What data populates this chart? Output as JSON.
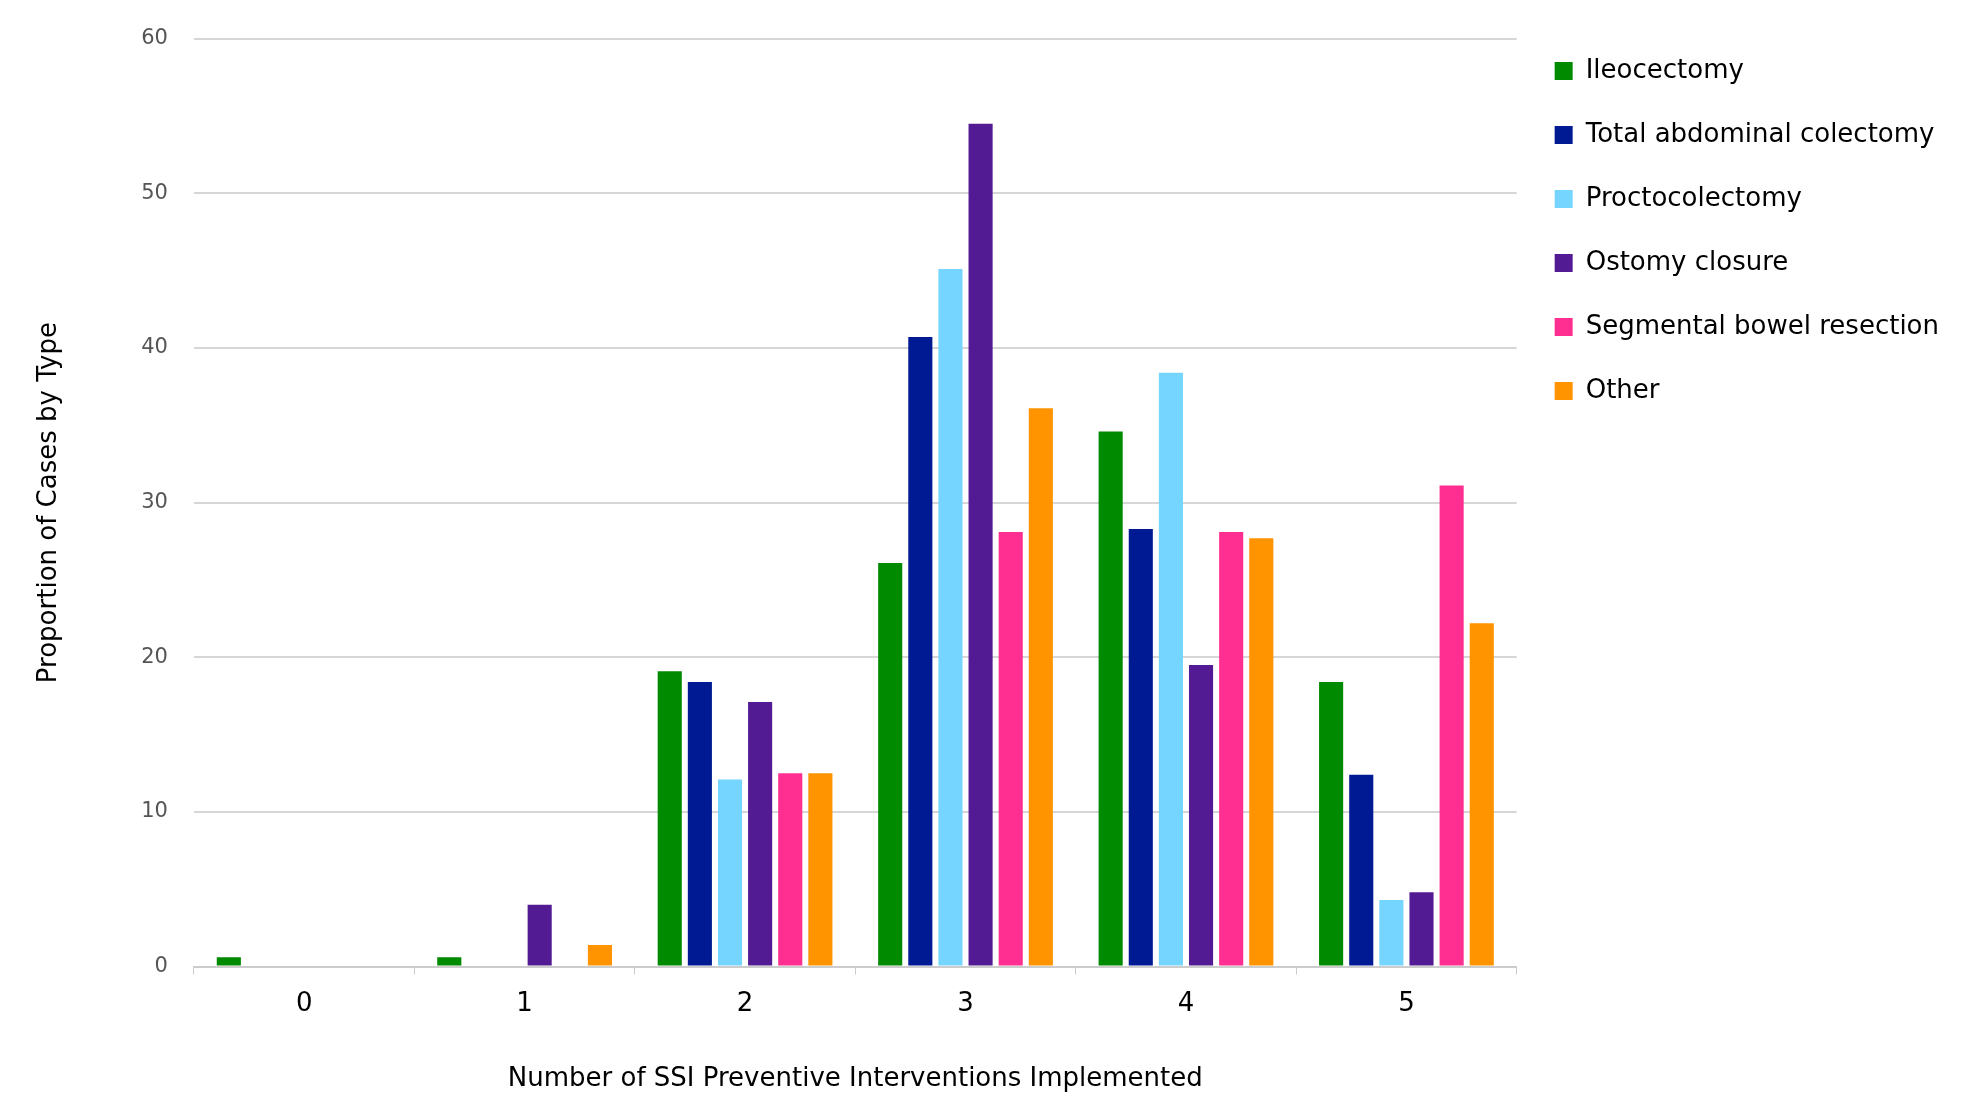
{
  "chart_data": {
    "type": "bar",
    "xlabel": "Number of SSI Preventive Interventions Implemented",
    "ylabel": "Proportion of Cases by Type",
    "categories": [
      "0",
      "1",
      "2",
      "3",
      "4",
      "5"
    ],
    "series": [
      {
        "name": "Ileocectomy",
        "color": "#008a00",
        "values": [
          0.6,
          0.6,
          19.1,
          26.1,
          34.6,
          18.4
        ]
      },
      {
        "name": "Total abdominal colectomy",
        "color": "#001a94",
        "values": [
          0,
          0,
          18.4,
          40.7,
          28.3,
          12.4
        ]
      },
      {
        "name": "Proctocolectomy",
        "color": "#75d5ff",
        "values": [
          0,
          0,
          12.1,
          45.1,
          38.4,
          4.3
        ]
      },
      {
        "name": "Ostomy closure",
        "color": "#531b93",
        "values": [
          0,
          4.0,
          17.1,
          54.5,
          19.5,
          4.8
        ]
      },
      {
        "name": "Segmental bowel resection",
        "color": "#ff2f92",
        "values": [
          0,
          0,
          12.5,
          28.1,
          28.1,
          31.1
        ]
      },
      {
        "name": "Other",
        "color": "#ff9300",
        "values": [
          0,
          1.4,
          12.5,
          36.1,
          27.7,
          22.2
        ]
      }
    ],
    "ylim": [
      0,
      60
    ],
    "yticks": [
      0,
      10,
      20,
      30,
      40,
      50,
      60
    ],
    "grid": "y",
    "legend": "top right"
  }
}
